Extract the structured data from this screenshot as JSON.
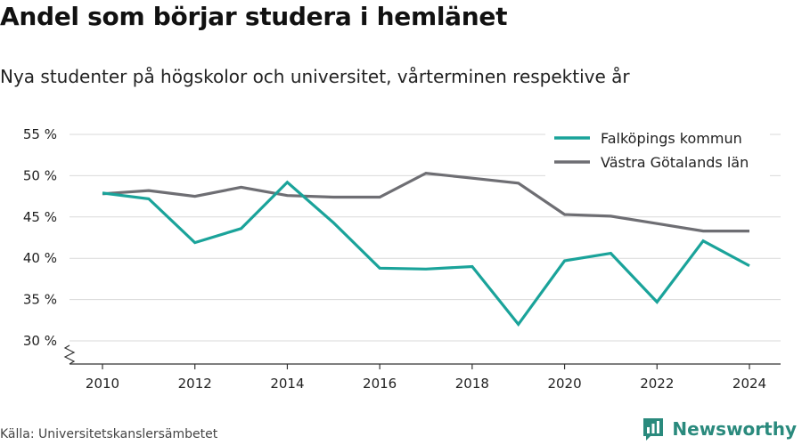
{
  "title": "Andel som börjar studera i hemlänet",
  "subtitle": "Nya studenter på högskolor och universitet, vårterminen respektive år",
  "source": "Källa: Universitetskanslersämbetet",
  "brand": {
    "name": "Newsworthy",
    "icon": "bar-chart-icon",
    "color": "#2a8a7d"
  },
  "chart_data": {
    "type": "line",
    "x": [
      2010,
      2011,
      2012,
      2013,
      2014,
      2015,
      2016,
      2017,
      2018,
      2019,
      2020,
      2021,
      2022,
      2023,
      2024
    ],
    "xticks": [
      2010,
      2012,
      2014,
      2016,
      2018,
      2020,
      2022,
      2024
    ],
    "xtick_labels": [
      "2010",
      "2012",
      "2014",
      "2016",
      "2018",
      "2020",
      "2022",
      "2024"
    ],
    "yticks": [
      30,
      35,
      40,
      45,
      50,
      55
    ],
    "ytick_labels": [
      "30 %",
      "35 %",
      "40 %",
      "45 %",
      "50 %",
      "55 %"
    ],
    "ylim": [
      30,
      55
    ],
    "xlim": [
      2010,
      2024
    ],
    "grid": true,
    "broken_axis": true,
    "legend_position": "top-right",
    "series": [
      {
        "name": "Falköpings kommun",
        "color": "#1aa39a",
        "values": [
          47.9,
          47.2,
          41.9,
          43.6,
          49.2,
          44.3,
          38.8,
          38.7,
          39.0,
          32.0,
          39.7,
          40.6,
          34.7,
          42.1,
          39.1
        ]
      },
      {
        "name": "Västra Götalands län",
        "color": "#6e6e73",
        "values": [
          47.8,
          48.2,
          47.5,
          48.6,
          47.6,
          47.4,
          47.4,
          50.3,
          49.7,
          49.1,
          45.3,
          45.1,
          44.2,
          43.3,
          43.3
        ]
      }
    ]
  }
}
